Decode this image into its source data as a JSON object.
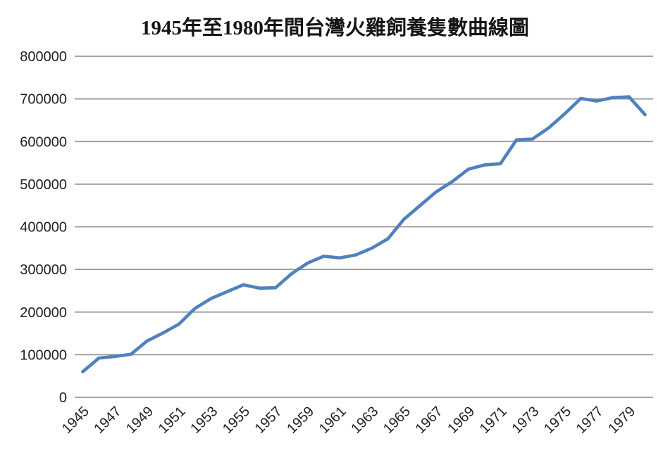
{
  "chart_data": {
    "type": "line",
    "title": "1945年至1980年間台灣火雞飼養隻數曲線圖",
    "xlabel": "",
    "ylabel": "",
    "x": [
      1945,
      1946,
      1947,
      1948,
      1949,
      1950,
      1951,
      1952,
      1953,
      1954,
      1955,
      1956,
      1957,
      1958,
      1959,
      1960,
      1961,
      1962,
      1963,
      1964,
      1965,
      1966,
      1967,
      1968,
      1969,
      1970,
      1971,
      1972,
      1973,
      1974,
      1975,
      1976,
      1977,
      1978,
      1979,
      1980
    ],
    "series": [
      {
        "name": "台灣火雞飼養隻數",
        "values": [
          60000,
          92000,
          96000,
          101000,
          132000,
          151000,
          172000,
          209000,
          232000,
          248000,
          264000,
          256000,
          257000,
          290000,
          315000,
          331000,
          327000,
          334000,
          350000,
          372000,
          418000,
          450000,
          482000,
          506000,
          535000,
          545000,
          548000,
          604000,
          606000,
          632000,
          665000,
          701000,
          695000,
          703000,
          705000,
          663000
        ]
      }
    ],
    "ylim": [
      0,
      800000
    ],
    "yticks": [
      0,
      100000,
      200000,
      300000,
      400000,
      500000,
      600000,
      700000,
      800000
    ],
    "xtick_labels": [
      "1945",
      "1947",
      "1949",
      "1951",
      "1953",
      "1955",
      "1957",
      "1959",
      "1961",
      "1963",
      "1965",
      "1967",
      "1969",
      "1971",
      "1973",
      "1975",
      "1977",
      "1979"
    ],
    "xtick_every": 2,
    "grid": true,
    "legend_position": "none",
    "line_color": "#4F81BD",
    "gridline_color": "#969696",
    "text_color": "#1f1f1f",
    "background_color": "#ffffff"
  }
}
